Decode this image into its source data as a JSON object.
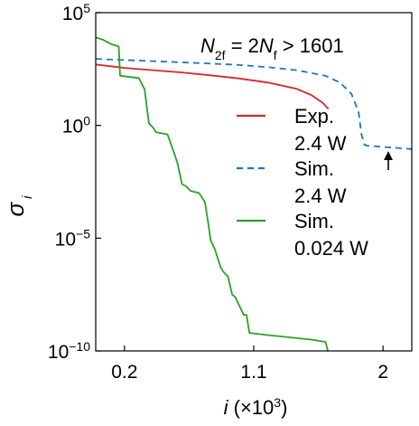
{
  "chart_data": {
    "type": "line",
    "title": "",
    "xlabel": "i (×10³)",
    "ylabel": "σ i",
    "xlim": [
      0,
      2.2
    ],
    "ylim": [
      -10,
      5
    ],
    "yscale": "log",
    "grid": false,
    "legend_position": "center-right",
    "x_tick_values": [
      0.2,
      1.1,
      2
    ],
    "x_tick_labels": [
      "0.2",
      "1.1",
      "2"
    ],
    "y_tick_exponents": [
      5,
      0,
      -5,
      -10
    ],
    "annotation": "N2f = 2Nf > 1601",
    "arrow_marker": {
      "x": 1.88,
      "log10_y": -1.6
    },
    "series": [
      {
        "name": "Exp. 2.4 W",
        "color": "#d62728",
        "dash": "solid",
        "x": [
          0.0,
          0.2,
          0.4,
          0.6,
          0.8,
          1.0,
          1.2,
          1.4,
          1.5,
          1.58,
          1.62
        ],
        "log10_y": [
          2.7,
          2.55,
          2.45,
          2.35,
          2.22,
          2.08,
          1.9,
          1.62,
          1.35,
          1.0,
          0.73
        ]
      },
      {
        "name": "Sim. 2.4 W",
        "color": "#1f77b4",
        "dash": "dashed",
        "x": [
          0.0,
          0.2,
          0.4,
          0.6,
          0.8,
          1.0,
          1.2,
          1.4,
          1.6,
          1.7,
          1.78,
          1.83,
          1.85,
          1.87,
          1.89,
          2.0,
          2.1,
          2.2
        ],
        "log10_y": [
          2.95,
          2.9,
          2.85,
          2.8,
          2.74,
          2.68,
          2.58,
          2.45,
          2.2,
          1.9,
          1.4,
          0.6,
          -0.4,
          -0.85,
          -0.9,
          -0.95,
          -1.0,
          -1.05
        ]
      },
      {
        "name": "Sim. 0.024 W",
        "color": "#2ca02c",
        "dash": "solid",
        "x": [
          0.0,
          0.05,
          0.11,
          0.16,
          0.17,
          0.3,
          0.34,
          0.37,
          0.4,
          0.42,
          0.5,
          0.55,
          0.57,
          0.6,
          0.63,
          0.66,
          0.72,
          0.76,
          0.78,
          0.8,
          0.83,
          0.87,
          0.89,
          0.92,
          0.95,
          0.97,
          1.0,
          1.03,
          1.05,
          1.07,
          1.2,
          1.35,
          1.5,
          1.6,
          1.62,
          1.62
        ],
        "log10_y": [
          3.9,
          3.8,
          3.6,
          3.5,
          2.2,
          2.1,
          1.6,
          0.1,
          -0.1,
          -0.3,
          -0.4,
          -1.3,
          -1.7,
          -2.6,
          -2.7,
          -2.9,
          -3.0,
          -3.4,
          -4.2,
          -5.1,
          -5.5,
          -6.3,
          -6.5,
          -6.7,
          -7.5,
          -7.6,
          -8.0,
          -8.4,
          -8.4,
          -9.2,
          -9.3,
          -9.4,
          -9.5,
          -9.6,
          -10.1,
          -10.5
        ]
      }
    ]
  }
}
